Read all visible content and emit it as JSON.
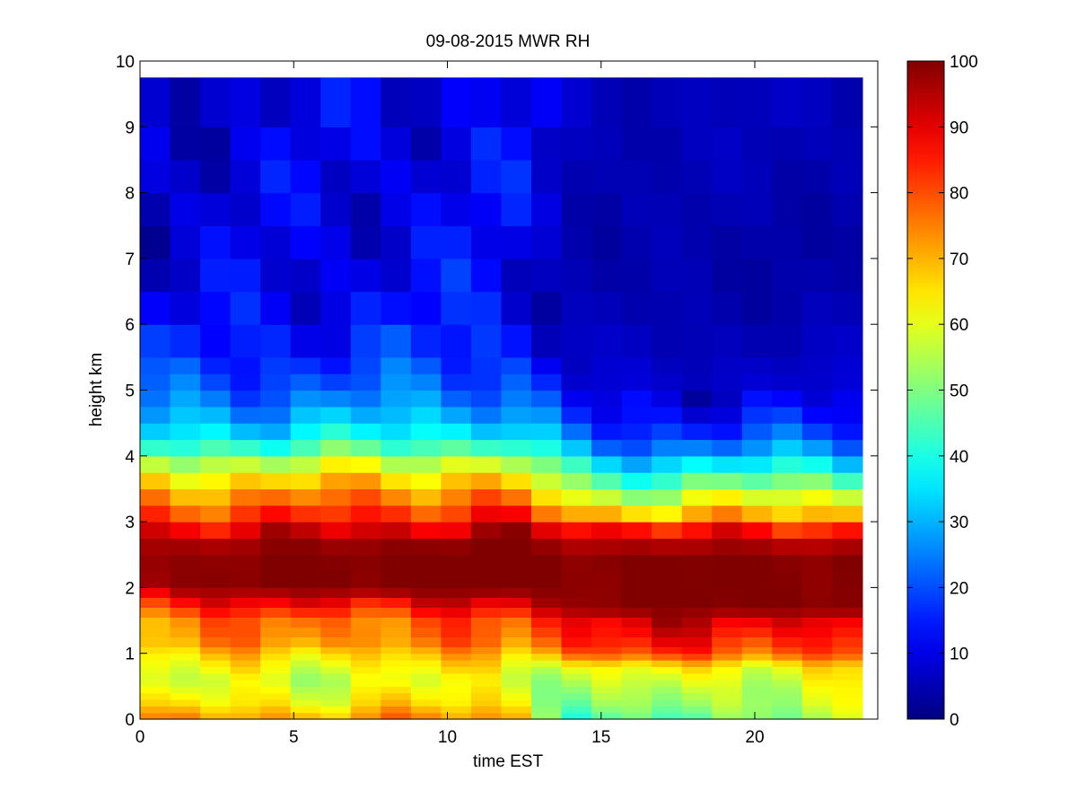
{
  "chart_data": {
    "type": "heatmap",
    "title": "09-08-2015 MWR RH",
    "xlabel": "time EST",
    "ylabel": "height km",
    "xlim": [
      0,
      24
    ],
    "ylim": [
      0,
      10
    ],
    "x_ticks": [
      0,
      5,
      10,
      15,
      20
    ],
    "y_ticks": [
      0,
      1,
      2,
      3,
      4,
      5,
      6,
      7,
      8,
      9,
      10
    ],
    "x_tick_labels": [
      "0",
      "5",
      "10",
      "15",
      "20"
    ],
    "y_tick_labels": [
      "0",
      "1",
      "2",
      "3",
      "4",
      "5",
      "6",
      "7",
      "8",
      "9",
      "10"
    ],
    "data_extent": {
      "x": [
        0,
        23.5
      ],
      "y": [
        0,
        9.75
      ]
    },
    "colorbar": {
      "colormap": "jet",
      "range": [
        0,
        100
      ],
      "ticks": [
        0,
        10,
        20,
        30,
        40,
        50,
        60,
        70,
        80,
        90,
        100
      ],
      "tick_labels": [
        "0",
        "10",
        "20",
        "30",
        "40",
        "50",
        "60",
        "70",
        "80",
        "90",
        "100"
      ]
    },
    "columns": 24,
    "row_heights_km": [
      0,
      0.1,
      0.2,
      0.3,
      0.4,
      0.5,
      0.6,
      0.7,
      0.8,
      0.9,
      1.0,
      1.1,
      1.25,
      1.4,
      1.55,
      1.7,
      1.85,
      2.0,
      2.25,
      2.5,
      2.75,
      3.0,
      3.25,
      3.5,
      3.75,
      4.0,
      4.25,
      4.5,
      4.75,
      5.0,
      5.25,
      5.5,
      6.0,
      6.5,
      7.0,
      7.5,
      8.0,
      8.5,
      9.0,
      9.75
    ],
    "profiles": {
      "morning": [
        [
          0,
          72
        ],
        [
          0.25,
          62
        ],
        [
          0.6,
          56
        ],
        [
          0.9,
          63
        ],
        [
          1.2,
          74
        ],
        [
          1.5,
          76
        ],
        [
          1.8,
          90
        ],
        [
          2.0,
          100
        ],
        [
          2.5,
          100
        ],
        [
          2.8,
          92
        ],
        [
          3.1,
          80
        ],
        [
          3.5,
          70
        ],
        [
          3.8,
          60
        ],
        [
          4.1,
          43
        ],
        [
          4.4,
          33
        ],
        [
          4.8,
          24
        ],
        [
          5.2,
          18
        ],
        [
          6.0,
          12
        ],
        [
          7.0,
          9
        ],
        [
          8.0,
          8
        ],
        [
          9.75,
          8
        ]
      ],
      "midday": [
        [
          0,
          74
        ],
        [
          0.25,
          66
        ],
        [
          0.6,
          60
        ],
        [
          0.9,
          66
        ],
        [
          1.2,
          75
        ],
        [
          1.5,
          78
        ],
        [
          1.8,
          90
        ],
        [
          2.0,
          100
        ],
        [
          2.6,
          100
        ],
        [
          2.9,
          93
        ],
        [
          3.2,
          83
        ],
        [
          3.5,
          73
        ],
        [
          3.8,
          63
        ],
        [
          4.1,
          48
        ],
        [
          4.4,
          36
        ],
        [
          4.8,
          27
        ],
        [
          5.2,
          21
        ],
        [
          6.0,
          14
        ],
        [
          7.0,
          11
        ],
        [
          8.0,
          12
        ],
        [
          9.75,
          11
        ]
      ],
      "afternoon": [
        [
          0,
          38
        ],
        [
          0.2,
          45
        ],
        [
          0.5,
          52
        ],
        [
          0.8,
          60
        ],
        [
          1.0,
          80
        ],
        [
          1.2,
          87
        ],
        [
          1.5,
          92
        ],
        [
          1.7,
          100
        ],
        [
          2.5,
          100
        ],
        [
          2.9,
          88
        ],
        [
          3.1,
          70
        ],
        [
          3.3,
          58
        ],
        [
          3.6,
          45
        ],
        [
          3.9,
          33
        ],
        [
          4.2,
          20
        ],
        [
          4.6,
          12
        ],
        [
          5.0,
          8
        ],
        [
          6.0,
          5
        ],
        [
          7.0,
          4
        ],
        [
          8.0,
          5
        ],
        [
          9.75,
          6
        ]
      ],
      "evening": [
        [
          0,
          52
        ],
        [
          0.25,
          56
        ],
        [
          0.5,
          58
        ],
        [
          0.8,
          64
        ],
        [
          1.0,
          80
        ],
        [
          1.2,
          85
        ],
        [
          1.5,
          92
        ],
        [
          1.7,
          100
        ],
        [
          2.5,
          100
        ],
        [
          2.8,
          90
        ],
        [
          3.1,
          70
        ],
        [
          3.4,
          58
        ],
        [
          3.7,
          44
        ],
        [
          4.0,
          30
        ],
        [
          4.3,
          20
        ],
        [
          4.7,
          12
        ],
        [
          5.0,
          8
        ],
        [
          6.0,
          5
        ],
        [
          7.0,
          4
        ],
        [
          8.0,
          5
        ],
        [
          9.75,
          6
        ]
      ]
    }
  }
}
